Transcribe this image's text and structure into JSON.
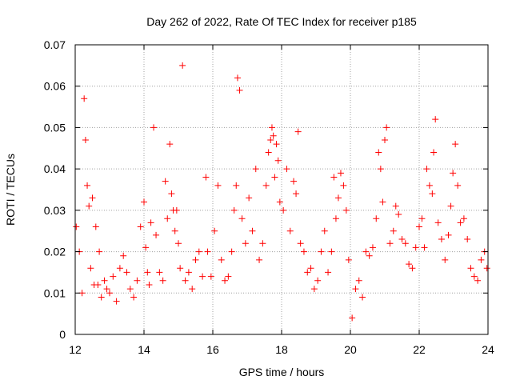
{
  "chart_data": {
    "type": "scatter",
    "title": "Day 262 of 2022, Rate Of TEC Index for receiver p185",
    "xlabel": "GPS time / hours",
    "ylabel": "ROTI / TECUs",
    "xlim": [
      12,
      24
    ],
    "ylim": [
      0,
      0.07
    ],
    "x_ticks": [
      12,
      14,
      16,
      18,
      20,
      22,
      24
    ],
    "x_tick_labels": [
      "12",
      "14",
      "16",
      "18",
      "20",
      "22",
      "24"
    ],
    "y_ticks": [
      0,
      0.01,
      0.02,
      0.03,
      0.04,
      0.05,
      0.06,
      0.07
    ],
    "y_tick_labels": [
      "0",
      "0.01",
      "0.02",
      "0.03",
      "0.04",
      "0.05",
      "0.06",
      "0.07"
    ],
    "grid": true,
    "marker": "+",
    "color": "#ff0000",
    "series": [
      {
        "name": "ROTI",
        "x": [
          12.03,
          12.12,
          12.2,
          12.26,
          12.3,
          12.35,
          12.4,
          12.45,
          12.5,
          12.55,
          12.6,
          12.66,
          12.7,
          12.76,
          12.85,
          12.92,
          13.0,
          13.1,
          13.2,
          13.3,
          13.4,
          13.5,
          13.6,
          13.7,
          13.8,
          13.9,
          14.0,
          14.05,
          14.1,
          14.15,
          14.2,
          14.28,
          14.35,
          14.45,
          14.55,
          14.62,
          14.68,
          14.75,
          14.8,
          14.85,
          14.9,
          14.95,
          15.0,
          15.05,
          15.12,
          15.2,
          15.3,
          15.4,
          15.5,
          15.6,
          15.7,
          15.8,
          15.85,
          15.95,
          16.05,
          16.15,
          16.25,
          16.35,
          16.45,
          16.55,
          16.62,
          16.68,
          16.72,
          16.78,
          16.85,
          16.95,
          17.05,
          17.15,
          17.25,
          17.35,
          17.45,
          17.55,
          17.62,
          17.68,
          17.72,
          17.76,
          17.8,
          17.85,
          17.9,
          17.95,
          18.05,
          18.15,
          18.25,
          18.35,
          18.42,
          18.48,
          18.55,
          18.65,
          18.75,
          18.85,
          18.95,
          19.05,
          19.15,
          19.25,
          19.35,
          19.45,
          19.52,
          19.58,
          19.65,
          19.72,
          19.8,
          19.88,
          19.95,
          20.05,
          20.15,
          20.25,
          20.35,
          20.45,
          20.55,
          20.65,
          20.75,
          20.82,
          20.88,
          20.94,
          21.0,
          21.05,
          21.15,
          21.25,
          21.32,
          21.4,
          21.5,
          21.6,
          21.7,
          21.8,
          21.9,
          22.0,
          22.08,
          22.15,
          22.22,
          22.3,
          22.38,
          22.42,
          22.47,
          22.55,
          22.65,
          22.75,
          22.85,
          22.92,
          22.98,
          23.05,
          23.12,
          23.2,
          23.3,
          23.4,
          23.5,
          23.6,
          23.7,
          23.8,
          23.9,
          23.97
        ],
        "y": [
          0.026,
          0.02,
          0.01,
          0.057,
          0.047,
          0.036,
          0.031,
          0.016,
          0.033,
          0.012,
          0.026,
          0.012,
          0.02,
          0.009,
          0.013,
          0.011,
          0.01,
          0.014,
          0.008,
          0.016,
          0.019,
          0.015,
          0.011,
          0.009,
          0.013,
          0.026,
          0.032,
          0.021,
          0.015,
          0.012,
          0.027,
          0.05,
          0.024,
          0.015,
          0.013,
          0.037,
          0.028,
          0.046,
          0.034,
          0.03,
          0.025,
          0.03,
          0.022,
          0.016,
          0.065,
          0.013,
          0.015,
          0.011,
          0.018,
          0.02,
          0.014,
          0.038,
          0.02,
          0.014,
          0.025,
          0.036,
          0.018,
          0.013,
          0.014,
          0.02,
          0.03,
          0.036,
          0.062,
          0.059,
          0.028,
          0.022,
          0.033,
          0.025,
          0.04,
          0.018,
          0.022,
          0.036,
          0.044,
          0.047,
          0.05,
          0.048,
          0.038,
          0.046,
          0.042,
          0.032,
          0.03,
          0.04,
          0.025,
          0.037,
          0.034,
          0.049,
          0.022,
          0.02,
          0.015,
          0.016,
          0.011,
          0.013,
          0.02,
          0.025,
          0.015,
          0.02,
          0.038,
          0.028,
          0.033,
          0.039,
          0.036,
          0.03,
          0.018,
          0.004,
          0.011,
          0.013,
          0.009,
          0.02,
          0.019,
          0.021,
          0.028,
          0.044,
          0.04,
          0.032,
          0.047,
          0.05,
          0.022,
          0.025,
          0.031,
          0.029,
          0.023,
          0.022,
          0.017,
          0.016,
          0.021,
          0.026,
          0.028,
          0.021,
          0.04,
          0.036,
          0.034,
          0.044,
          0.052,
          0.027,
          0.023,
          0.018,
          0.024,
          0.031,
          0.039,
          0.046,
          0.036,
          0.027,
          0.028,
          0.023,
          0.016,
          0.014,
          0.013,
          0.018,
          0.02,
          0.016
        ]
      }
    ]
  }
}
